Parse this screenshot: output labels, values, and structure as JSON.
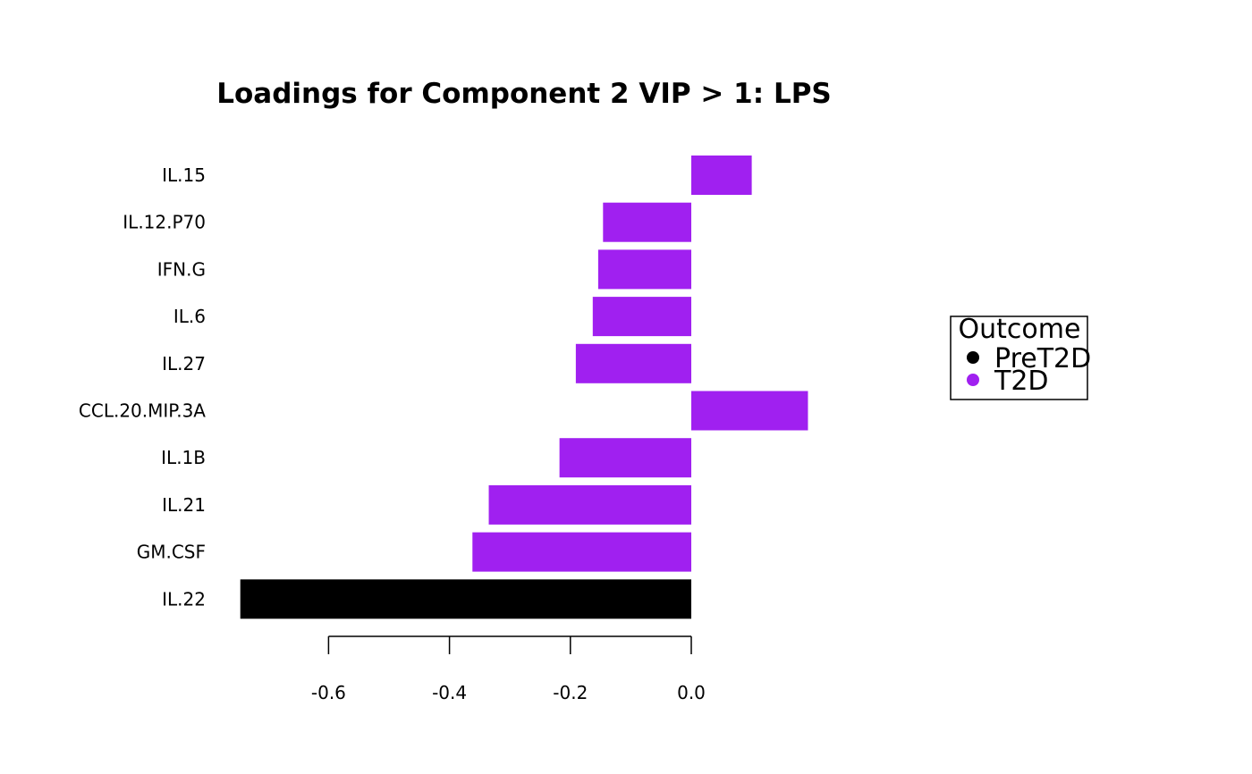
{
  "chart_data": {
    "type": "bar",
    "orientation": "horizontal",
    "title": "Loadings for Component 2 VIP > 1: LPS",
    "xlabel": "",
    "ylabel": "",
    "categories": [
      "IL.15",
      "IL.12.P70",
      "IFN.G",
      "IL.6",
      "IL.27",
      "CCL.20.MIP.3A",
      "IL.1B",
      "IL.21",
      "GM.CSF",
      "IL.22"
    ],
    "values": [
      0.1,
      -0.146,
      -0.154,
      -0.163,
      -0.191,
      0.193,
      -0.218,
      -0.335,
      -0.362,
      -0.746
    ],
    "groups": [
      "T2D",
      "T2D",
      "T2D",
      "T2D",
      "T2D",
      "T2D",
      "T2D",
      "T2D",
      "T2D",
      "PreT2D"
    ],
    "xlim": [
      -0.75,
      0.2
    ],
    "xticks": [
      -0.6,
      -0.4,
      -0.2,
      0.0
    ],
    "xtick_labels": [
      "-0.6",
      "-0.4",
      "-0.2",
      "0.0"
    ],
    "legend": {
      "title": "Outcome",
      "position": "right",
      "entries": [
        {
          "label": "PreT2D",
          "color": "#000000"
        },
        {
          "label": "T2D",
          "color": "#a020f0"
        }
      ]
    },
    "colors": {
      "PreT2D": "#000000",
      "T2D": "#a020f0"
    },
    "grid": false
  }
}
